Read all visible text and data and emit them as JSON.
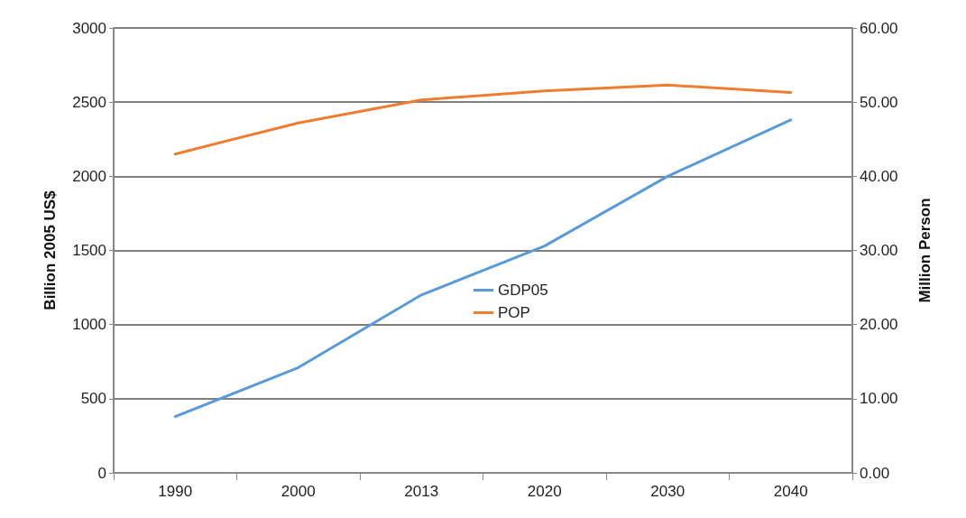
{
  "chart_data": {
    "type": "line",
    "categories": [
      "1990",
      "2000",
      "2013",
      "2020",
      "2030",
      "2040"
    ],
    "ylabel": "Billion 2005 US$",
    "y2label": "Million Person",
    "series": [
      {
        "name": "GDP05",
        "color": "#5b9bd5",
        "values": [
          380,
          710,
          1200,
          1530,
          2000,
          2380
        ]
      },
      {
        "name": "POP",
        "color": "#ed7d31",
        "axis": "y2",
        "values": [
          43.0,
          47.2,
          50.3,
          51.5,
          52.3,
          51.3
        ]
      }
    ],
    "ylim": [
      0,
      3000
    ],
    "yticks": [
      0,
      500,
      1000,
      1500,
      2000,
      2500,
      3000
    ],
    "y2lim": [
      0,
      60
    ],
    "y2ticks": [
      {
        "value": 0,
        "label": "0.00"
      },
      {
        "value": 10,
        "label": "10.00"
      },
      {
        "value": 20,
        "label": "20.00"
      },
      {
        "value": 30,
        "label": "30.00"
      },
      {
        "value": 40,
        "label": "40.00"
      },
      {
        "value": 50,
        "label": "50.00"
      },
      {
        "value": 60,
        "label": "60.00"
      }
    ],
    "grid": "y",
    "legend": "center",
    "marker": "none",
    "line_style": "solid"
  }
}
